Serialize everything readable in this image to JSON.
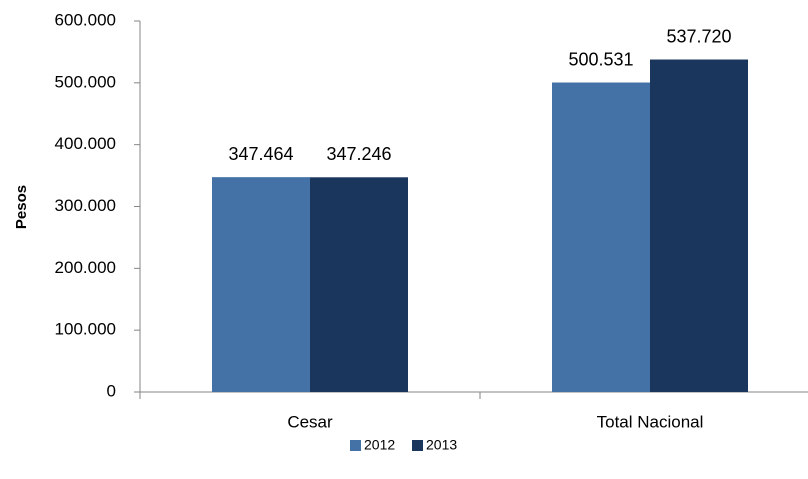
{
  "chart_data": {
    "type": "bar",
    "title": "",
    "xlabel": "",
    "ylabel": "Pesos",
    "categories": [
      "Cesar",
      "Total Nacional"
    ],
    "series": [
      {
        "name": "2012",
        "values": [
          347464,
          500531
        ],
        "labels": [
          "347.464",
          "500.531"
        ],
        "color": "#4472A6"
      },
      {
        "name": "2013",
        "values": [
          347246,
          537720
        ],
        "labels": [
          "347.246",
          "537.720"
        ],
        "color": "#1B365D"
      }
    ],
    "ylim": [
      0,
      600000
    ],
    "yticks": [
      0,
      100000,
      200000,
      300000,
      400000,
      500000,
      600000
    ],
    "ytick_labels": [
      "0",
      "100.000",
      "200.000",
      "300.000",
      "400.000",
      "500.000",
      "600.000"
    ],
    "grid": false,
    "legend": "bottom"
  }
}
